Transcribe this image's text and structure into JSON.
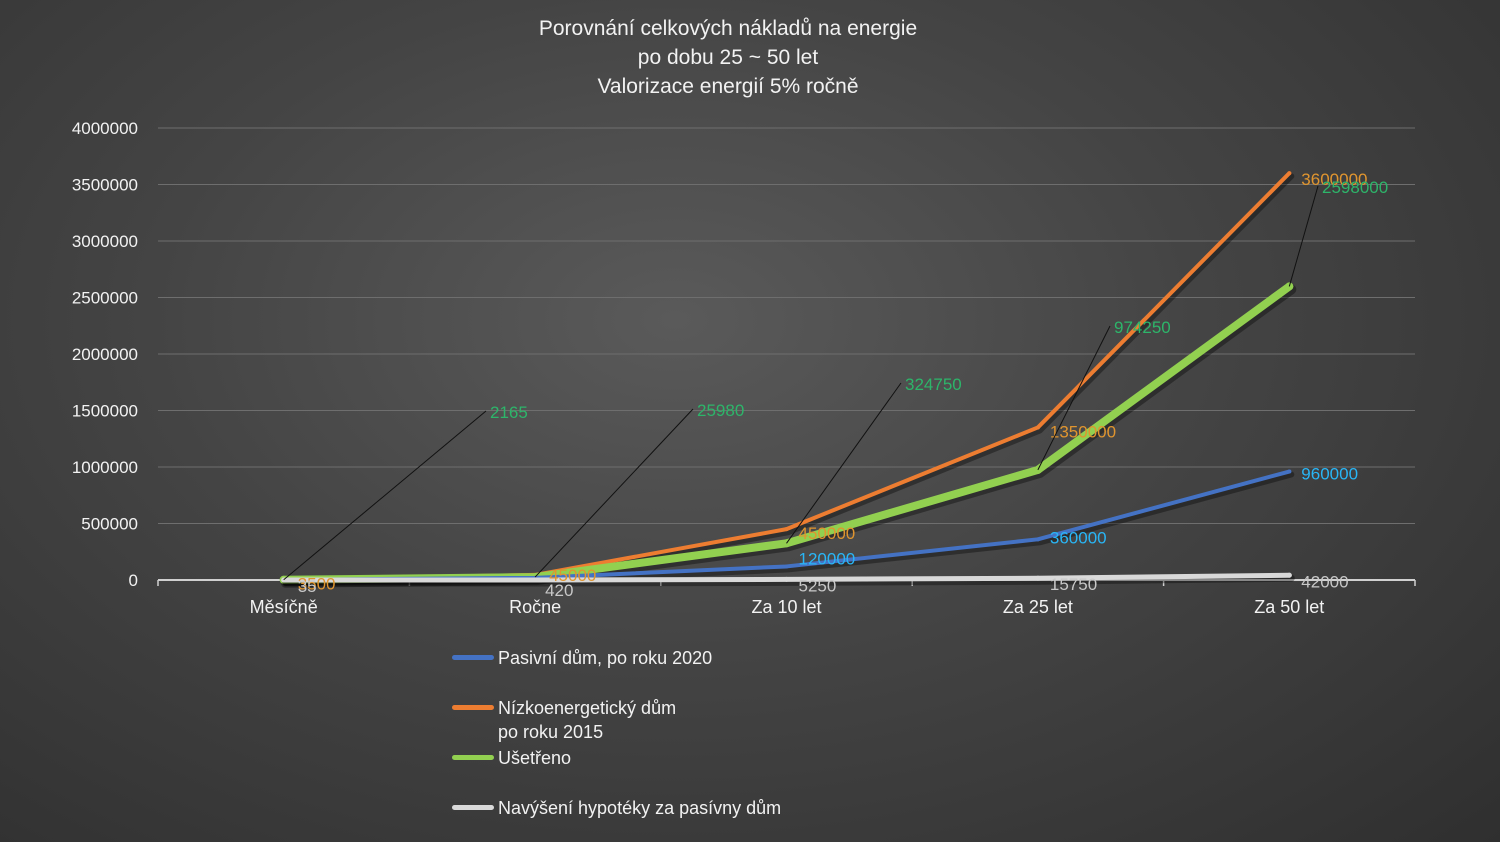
{
  "chart_data": {
    "type": "line",
    "title": [
      "Porovnání celkových nákladů na energie",
      "po dobu 25 ~ 50 let",
      "Valorizace energií 5% ročně"
    ],
    "categories": [
      "Měsíčně",
      "Ročne",
      "Za 10 let",
      "Za 25 let",
      "Za 50 let"
    ],
    "ylim": [
      0,
      4000000
    ],
    "yticks": [
      "0",
      "500000",
      "1000000",
      "1500000",
      "2000000",
      "2500000",
      "3000000",
      "3500000",
      "4000000"
    ],
    "grid": true,
    "legend_position": "bottom",
    "series": [
      {
        "name": "Pasivní dům, po roku 2020",
        "color": "#4472c4",
        "values": [
          1600,
          19200,
          120000,
          360000,
          960000
        ],
        "labels": [
          "",
          "",
          "120000",
          "360000",
          "960000"
        ],
        "label_color": "#29b6f6"
      },
      {
        "name": "Nízkoenergetický dům\npo roku 2015",
        "color": "#ed7d31",
        "values": [
          3500,
          45000,
          450000,
          1350000,
          3600000
        ],
        "labels": [
          "3500",
          "45000",
          "450000",
          "1350000",
          "3600000"
        ],
        "label_color": "#e0952f"
      },
      {
        "name": "Ušetřeno",
        "color": "#92d050",
        "values": [
          2165,
          25980,
          324750,
          974250,
          2598000
        ],
        "labels": [
          "2165",
          "25980",
          "324750",
          "974250",
          "2598000"
        ],
        "label_color": "#2db56a"
      },
      {
        "name": "Navýšení hypotéky za pasívny dům",
        "color": "#d9d9d9",
        "values": [
          35,
          420,
          5250,
          15750,
          42000
        ],
        "labels": [
          "35",
          "420",
          "5250",
          "15750",
          "42000"
        ],
        "label_color": "#c8c8c8"
      }
    ]
  }
}
